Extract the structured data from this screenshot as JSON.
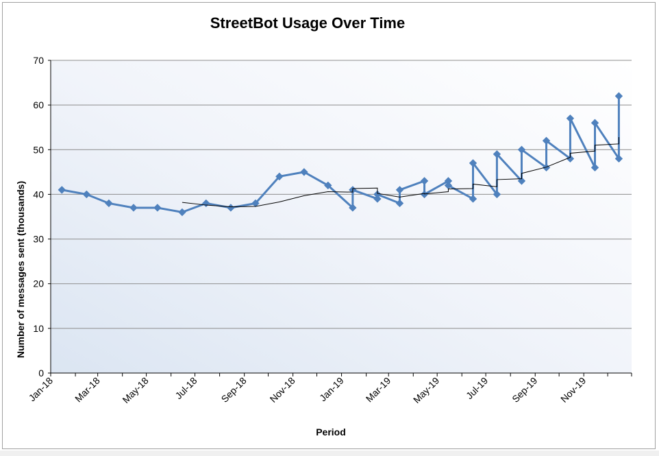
{
  "chart_data": {
    "type": "line",
    "title": "StreetBot Usage Over Time",
    "xlabel": "Period",
    "ylabel": "Number of messages sent (thousands)",
    "ylim": [
      0,
      70
    ],
    "yticks": [
      0,
      10,
      20,
      30,
      40,
      50,
      60,
      70
    ],
    "x_range": [
      "2018-01-01",
      "2019-12-31"
    ],
    "x_tick_labels": [
      "Jan-18",
      "Mar-18",
      "May-18",
      "Jul-18",
      "Sep-18",
      "Nov-18",
      "Jan-19",
      "Mar-19",
      "May-19",
      "Jul-19",
      "Sep-19",
      "Nov-19"
    ],
    "grid": true,
    "legend": "none",
    "series": [
      {
        "color": "#4f81bd",
        "marker": "diamond",
        "points": [
          [
            "2018-01-15",
            41
          ],
          [
            "2018-02-15",
            40
          ],
          [
            "2018-03-15",
            38
          ],
          [
            "2018-04-15",
            37
          ],
          [
            "2018-05-15",
            37
          ],
          [
            "2018-06-15",
            36
          ],
          [
            "2018-07-15",
            38
          ],
          [
            "2018-08-15",
            37
          ],
          [
            "2018-09-15",
            38
          ],
          [
            "2018-10-15",
            44
          ],
          [
            "2018-11-15",
            45
          ],
          [
            "2018-12-15",
            42
          ],
          [
            "2019-01-15",
            37
          ],
          [
            "2019-01-15",
            41
          ],
          [
            "2019-02-15",
            39
          ],
          [
            "2019-02-15",
            40
          ],
          [
            "2019-03-15",
            38
          ],
          [
            "2019-03-15",
            41
          ],
          [
            "2019-04-15",
            43
          ],
          [
            "2019-04-15",
            40
          ],
          [
            "2019-05-15",
            43
          ],
          [
            "2019-05-15",
            42
          ],
          [
            "2019-06-15",
            39
          ],
          [
            "2019-06-15",
            47
          ],
          [
            "2019-07-15",
            40
          ],
          [
            "2019-07-15",
            49
          ],
          [
            "2019-08-15",
            43
          ],
          [
            "2019-08-15",
            50
          ],
          [
            "2019-09-15",
            46
          ],
          [
            "2019-09-15",
            52
          ],
          [
            "2019-10-15",
            48
          ],
          [
            "2019-10-15",
            57
          ],
          [
            "2019-11-15",
            46
          ],
          [
            "2019-11-15",
            56
          ],
          [
            "2019-12-15",
            48
          ],
          [
            "2019-12-15",
            62
          ]
        ]
      },
      {
        "color": "#000000",
        "marker": "none",
        "points": [
          [
            "2018-06-15",
            38.2
          ],
          [
            "2018-07-15",
            37.6
          ],
          [
            "2018-08-15",
            37.2
          ],
          [
            "2018-09-15",
            37.3
          ],
          [
            "2018-10-15",
            38.3
          ],
          [
            "2018-11-15",
            39.7
          ],
          [
            "2018-12-15",
            40.6
          ],
          [
            "2019-01-15",
            40.5
          ],
          [
            "2019-01-15",
            41.3
          ],
          [
            "2019-02-15",
            41.4
          ],
          [
            "2019-02-15",
            40.2
          ],
          [
            "2019-03-15",
            39.4
          ],
          [
            "2019-04-15",
            40.2
          ],
          [
            "2019-04-15",
            40.1
          ],
          [
            "2019-05-15",
            40.6
          ],
          [
            "2019-05-15",
            41.2
          ],
          [
            "2019-06-15",
            41.3
          ],
          [
            "2019-06-15",
            42.3
          ],
          [
            "2019-07-15",
            41.7
          ],
          [
            "2019-07-15",
            43.3
          ],
          [
            "2019-08-15",
            43.5
          ],
          [
            "2019-08-15",
            44.7
          ],
          [
            "2019-09-15",
            46.1
          ],
          [
            "2019-10-15",
            48.3
          ],
          [
            "2019-10-15",
            49.2
          ],
          [
            "2019-11-15",
            49.7
          ],
          [
            "2019-11-15",
            51.0
          ],
          [
            "2019-12-15",
            51.3
          ],
          [
            "2019-12-15",
            52.8
          ]
        ]
      }
    ]
  }
}
